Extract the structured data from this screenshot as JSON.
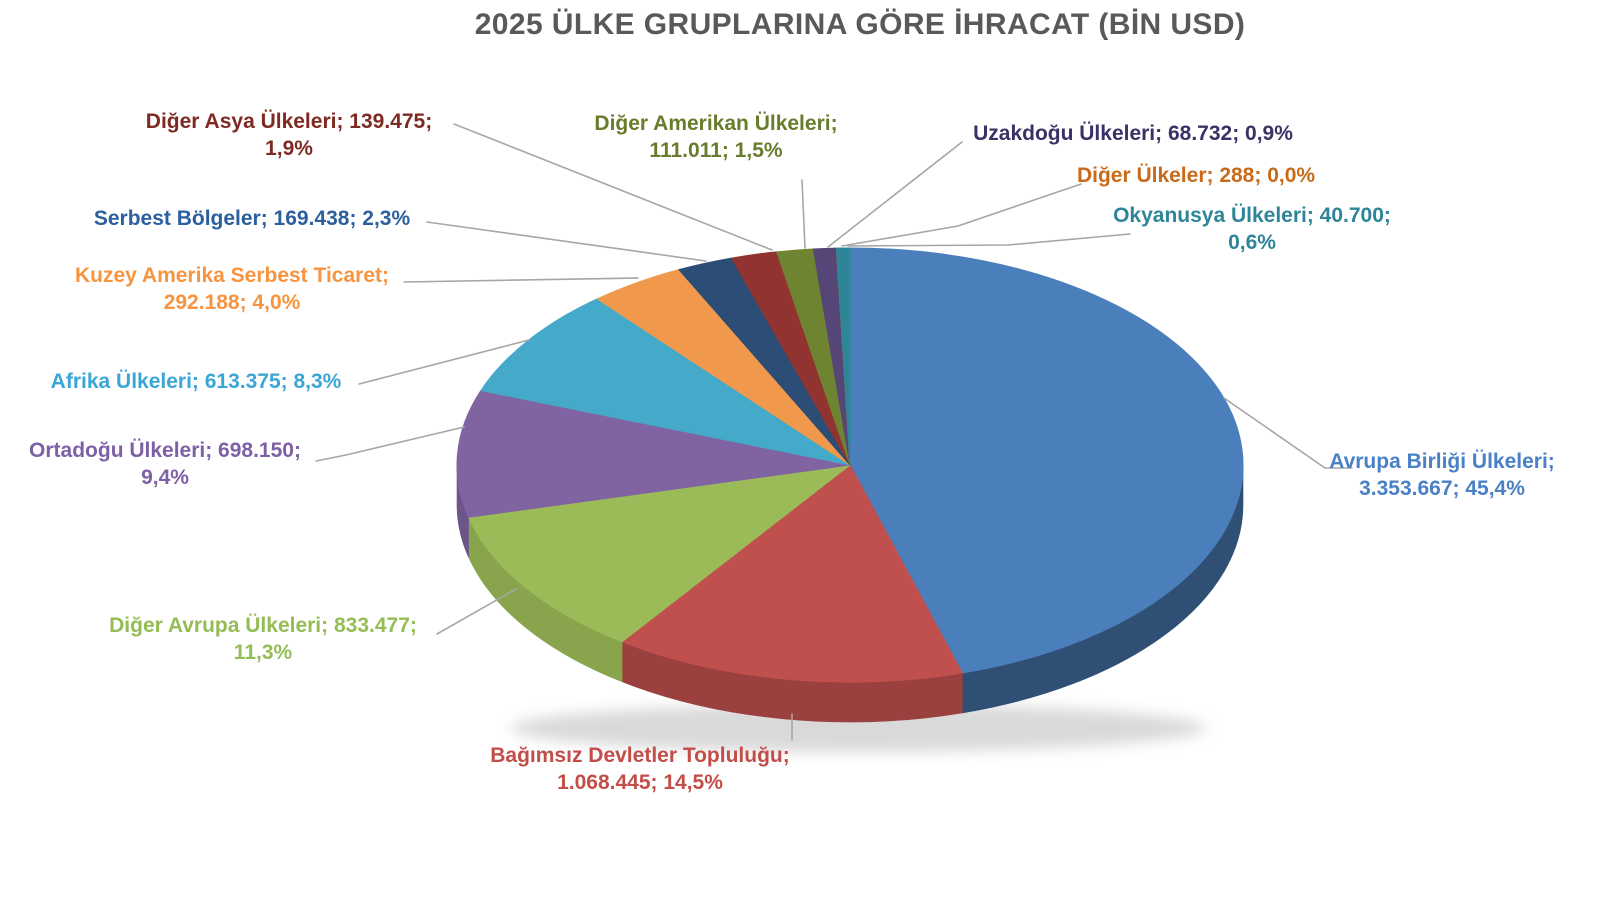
{
  "title": "2025 ÜLKE GRUPLARINA GÖRE İHRACAT (BİN USD)",
  "colors": {
    "title_text": "#595959",
    "leader_line": "#a6a6a6",
    "background": "#ffffff"
  },
  "chart_data": {
    "type": "pie",
    "is_3d": true,
    "title": "2025 ÜLKE GRUPLARINA GÖRE İHRACAT (BİN USD)",
    "unit": "BİN USD",
    "legend_position": "none",
    "label_format": "name; value; percent",
    "slices": [
      {
        "name": "Avrupa Birliği Ülkeleri",
        "value": 3353667,
        "value_text": "3.353.667",
        "percent": 45.4,
        "pct_text": "45,4%",
        "color": "#4b7fbb",
        "label_color": "#4a80c6",
        "label_lines": [
          "Avrupa Birliği Ülkeleri;",
          "3.353.667; 45,4%"
        ]
      },
      {
        "name": "Bağımsız Devletler Topluluğu",
        "value": 1068445,
        "value_text": "1.068.445",
        "percent": 14.5,
        "pct_text": "14,5%",
        "color": "#c0504d",
        "label_color": "#c24e4a",
        "label_lines": [
          "Bağımsız Devletler Topluluğu;",
          "1.068.445; 14,5%"
        ]
      },
      {
        "name": "Diğer Avrupa Ülkeleri",
        "value": 833477,
        "value_text": "833.477",
        "percent": 11.3,
        "pct_text": "11,3%",
        "color": "#9bbb59",
        "label_color": "#94bd55",
        "label_lines": [
          "Diğer Avrupa Ülkeleri; 833.477;",
          "11,3%"
        ]
      },
      {
        "name": "Ortadoğu Ülkeleri",
        "value": 698150,
        "value_text": "698.150",
        "percent": 9.4,
        "pct_text": "9,4%",
        "color": "#8064a2",
        "label_color": "#7d60a5",
        "label_lines": [
          "Ortadoğu Ülkeleri; 698.150;",
          "9,4%"
        ]
      },
      {
        "name": "Afrika Ülkeleri",
        "value": 613375,
        "value_text": "613.375",
        "percent": 8.3,
        "pct_text": "8,3%",
        "color": "#45a9c9",
        "label_color": "#3ba6d6",
        "label_lines": [
          "Afrika Ülkeleri; 613.375; 8,3%"
        ]
      },
      {
        "name": "Kuzey Amerika Serbest Ticaret",
        "value": 292188,
        "value_text": "292.188",
        "percent": 4.0,
        "pct_text": "4,0%",
        "color": "#f0994c",
        "label_color": "#f79440",
        "label_lines": [
          "Kuzey Amerika Serbest Ticaret;",
          "292.188; 4,0%"
        ]
      },
      {
        "name": "Serbest Bölgeler",
        "value": 169438,
        "value_text": "169.438",
        "percent": 2.3,
        "pct_text": "2,3%",
        "color": "#2c4d75",
        "label_color": "#2b5f9e",
        "label_lines": [
          "Serbest Bölgeler; 169.438; 2,3%"
        ]
      },
      {
        "name": "Diğer Asya Ülkeleri",
        "value": 139475,
        "value_text": "139.475",
        "percent": 1.9,
        "pct_text": "1,9%",
        "color": "#903331",
        "label_color": "#7e2a23",
        "label_lines": [
          "Diğer Asya Ülkeleri; 139.475;",
          "1,9%"
        ]
      },
      {
        "name": "Diğer Amerikan Ülkeleri",
        "value": 111011,
        "value_text": "111.011",
        "percent": 1.5,
        "pct_text": "1,5%",
        "color": "#6f8430",
        "label_color": "#697c2b",
        "label_lines": [
          "Diğer Amerikan Ülkeleri;",
          "111.011; 1,5%"
        ]
      },
      {
        "name": "Uzakdoğu Ülkeleri",
        "value": 68732,
        "value_text": "68.732",
        "percent": 0.9,
        "pct_text": "0,9%",
        "color": "#564677",
        "label_color": "#3b3166",
        "label_lines": [
          "Uzakdoğu Ülkeleri; 68.732; 0,9%"
        ]
      },
      {
        "name": "Diğer Ülkeler",
        "value": 288,
        "value_text": "288",
        "percent": 0.0,
        "pct_text": "0,0%",
        "color": "#e36c09",
        "label_color": "#c96a1b",
        "label_lines": [
          "Diğer Ülkeler; 288; 0,0%"
        ]
      },
      {
        "name": "Okyanusya Ülkeleri",
        "value": 40700,
        "value_text": "40.700",
        "percent": 0.6,
        "pct_text": "0,6%",
        "color": "#2e8598",
        "label_color": "#2e8598",
        "label_lines": [
          "Okyanusya Ülkeleri; 40.700;",
          "0,6%"
        ]
      }
    ]
  }
}
